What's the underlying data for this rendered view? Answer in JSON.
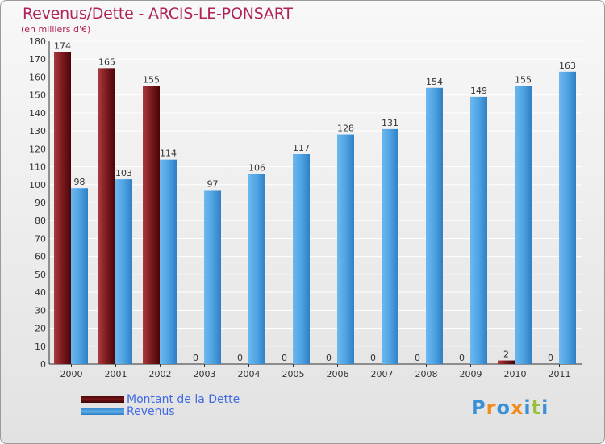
{
  "header": {
    "title": "Revenus/Dette - ARCIS-LE-PONSART",
    "subtitle": "(en milliers d'€)"
  },
  "colors": {
    "dette": "#6b0f12",
    "revenus": "#4b9fdd",
    "title": "#b0235a",
    "legend": "#4169e1"
  },
  "chart_data": {
    "type": "bar",
    "title": "Revenus/Dette - ARCIS-LE-PONSART",
    "ylabel": "(en milliers d'€)",
    "xlabel": "",
    "categories": [
      "2000",
      "2001",
      "2002",
      "2003",
      "2004",
      "2005",
      "2006",
      "2007",
      "2008",
      "2009",
      "2010",
      "2011"
    ],
    "series": [
      {
        "name": "Montant de la Dette",
        "values": [
          174,
          165,
          155,
          0,
          0,
          0,
          0,
          0,
          0,
          0,
          2,
          0
        ]
      },
      {
        "name": "Revenus",
        "values": [
          98,
          103,
          114,
          97,
          106,
          117,
          128,
          131,
          154,
          149,
          155,
          163
        ]
      }
    ],
    "ylim": [
      0,
      180
    ],
    "ytick_step": 10,
    "grid": true,
    "legend": "bottom-left"
  },
  "legend": {
    "items": [
      "Montant de la Dette",
      "Revenus"
    ]
  },
  "logo": {
    "letters": [
      "P",
      "r",
      "o",
      "x",
      "i",
      "t",
      "i"
    ],
    "colors": [
      "#3a8fd6",
      "#f08a1c",
      "#3a8fd6",
      "#f08a1c",
      "#3a8fd6",
      "#9ac03b",
      "#3a8fd6"
    ]
  }
}
